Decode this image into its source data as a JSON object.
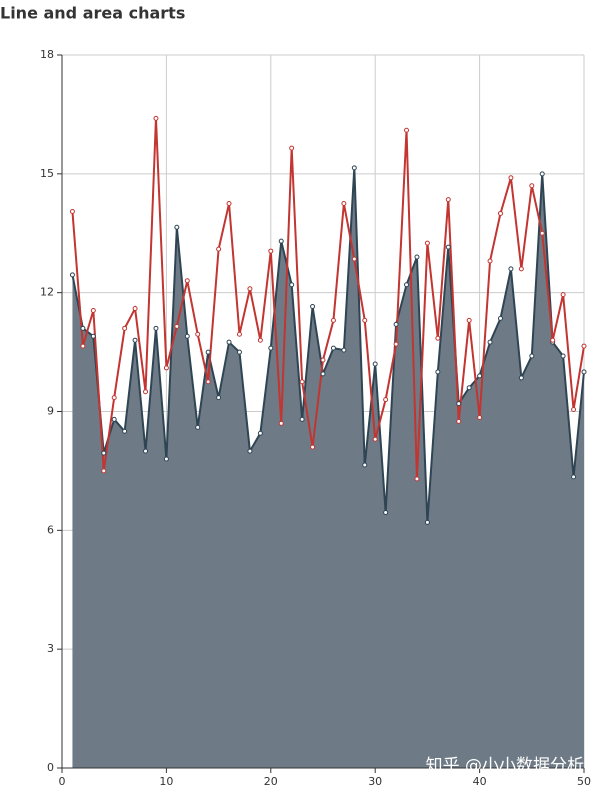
{
  "chart_data": {
    "type": "line",
    "title": "Line and area charts",
    "x": [
      1,
      2,
      3,
      4,
      5,
      6,
      7,
      8,
      9,
      10,
      11,
      12,
      13,
      14,
      15,
      16,
      17,
      18,
      19,
      20,
      21,
      22,
      23,
      24,
      25,
      26,
      27,
      28,
      29,
      30,
      31,
      32,
      33,
      34,
      35,
      36,
      37,
      38,
      39,
      40,
      41,
      42,
      43,
      44,
      45,
      46,
      47,
      48,
      49,
      50
    ],
    "series": [
      {
        "color": "#2f4554",
        "area": true,
        "area_color": "#6e7b86",
        "values": [
          12.45,
          11.1,
          10.9,
          7.95,
          8.8,
          8.5,
          10.8,
          8.0,
          11.1,
          7.8,
          13.65,
          10.9,
          8.6,
          10.5,
          9.35,
          10.75,
          10.5,
          8.0,
          8.45,
          10.6,
          13.3,
          12.2,
          8.8,
          11.65,
          9.95,
          10.6,
          10.55,
          15.15,
          7.65,
          10.2,
          6.45,
          11.2,
          12.2,
          12.9,
          6.2,
          10.0,
          13.15,
          9.2,
          9.6,
          9.9,
          10.75,
          11.35,
          12.6,
          9.85,
          10.4,
          15.0,
          10.75,
          10.4,
          7.35,
          10.0
        ]
      },
      {
        "color": "#c23531",
        "area": false,
        "values": [
          14.05,
          10.65,
          11.55,
          7.5,
          9.35,
          11.1,
          11.6,
          9.5,
          16.4,
          10.1,
          11.15,
          12.3,
          10.95,
          9.75,
          13.1,
          14.25,
          10.95,
          12.1,
          10.8,
          13.05,
          8.7,
          15.65,
          9.75,
          8.1,
          10.3,
          11.3,
          14.25,
          12.85,
          11.3,
          8.3,
          9.3,
          10.7,
          16.1,
          7.3,
          13.25,
          10.85,
          14.35,
          8.75,
          11.3,
          8.85,
          12.8,
          14.0,
          14.9,
          12.6,
          14.7,
          13.5,
          10.8,
          11.95,
          9.05,
          10.65
        ]
      }
    ],
    "xlim": [
      0,
      50
    ],
    "xticks": [
      0,
      10,
      20,
      30,
      40,
      50
    ],
    "ylim": [
      0,
      18
    ],
    "yticks": [
      0,
      3,
      6,
      9,
      12,
      15,
      18
    ],
    "grid": true,
    "watermark": "知乎 @小小数据分析"
  }
}
